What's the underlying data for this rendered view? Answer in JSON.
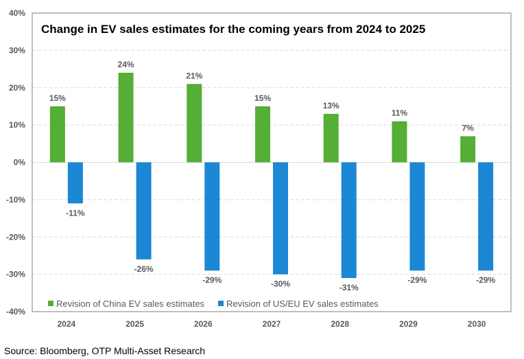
{
  "chart_data": {
    "type": "bar",
    "title": "Change in EV sales estimates for the coming years from 2024 to 2025",
    "categories": [
      "2024",
      "2025",
      "2026",
      "2027",
      "2028",
      "2029",
      "2030"
    ],
    "series": [
      {
        "name": "Revision of China EV sales estimates",
        "color": "#55AE35",
        "values": [
          15,
          24,
          21,
          15,
          13,
          11,
          7
        ]
      },
      {
        "name": "Revision of US/EU EV sales estimates",
        "color": "#1C87D5",
        "values": [
          -11,
          -26,
          -29,
          -30,
          -31,
          -29,
          -29
        ]
      }
    ],
    "ylim": [
      -40,
      40
    ],
    "yticks": [
      40,
      30,
      20,
      10,
      0,
      -10,
      -20,
      -30,
      -40
    ],
    "ytick_format": "%",
    "grid": true,
    "legend_position": "bottom-inside",
    "source": "Source: Bloomberg, OTP Multi-Asset Research"
  }
}
